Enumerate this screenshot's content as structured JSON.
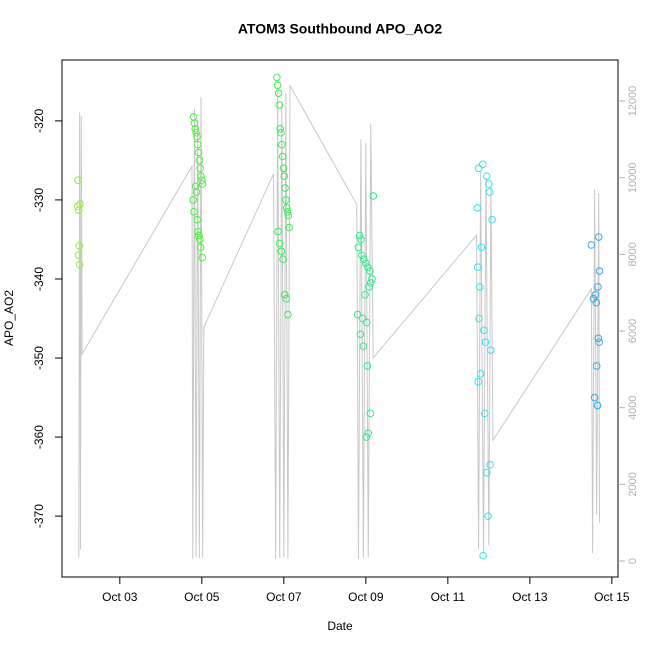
{
  "chart_data": {
    "type": "scatter",
    "title": "ATOM3 Southbound APO_AO2",
    "x_label": "Date",
    "y_label": "APO_AO2",
    "xlim": [
      1.59,
      15.15
    ],
    "ylim": [
      -377.7,
      -312.3
    ],
    "y2lim": [
      -417,
      13070
    ],
    "xticks": [
      {
        "value": 3,
        "label": "Oct 03"
      },
      {
        "value": 5,
        "label": "Oct 05"
      },
      {
        "value": 7,
        "label": "Oct 07"
      },
      {
        "value": 9,
        "label": "Oct 09"
      },
      {
        "value": 11,
        "label": "Oct 11"
      },
      {
        "value": 13,
        "label": "Oct 13"
      },
      {
        "value": 15,
        "label": "Oct 15"
      }
    ],
    "yticks": [
      -370,
      -360,
      -350,
      -340,
      -330,
      -320
    ],
    "y2ticks": [
      0,
      2000,
      4000,
      6000,
      8000,
      10000,
      12000
    ],
    "y2_color": "#b0b0b0",
    "series": [
      {
        "type": "line",
        "axis": "y2",
        "color": "#c8c8c8",
        "x": [
          2.0,
          2.02,
          2.04,
          2.06,
          2.08,
          4.76,
          4.78,
          4.82,
          4.86,
          4.9,
          4.94,
          4.98,
          5.02,
          5.05,
          6.75,
          6.8,
          6.85,
          6.9,
          6.95,
          7.0,
          7.05,
          7.1,
          7.15,
          8.78,
          8.82,
          8.88,
          8.94,
          9.0,
          9.06,
          9.12,
          9.18,
          11.7,
          11.75,
          11.8,
          11.87,
          11.93,
          12.0,
          12.05,
          12.1,
          14.5,
          14.53,
          14.58,
          14.63,
          14.68,
          14.7
        ],
        "values": [
          100,
          11700,
          300,
          11600,
          5400,
          10300,
          50,
          11800,
          100,
          11500,
          80,
          12100,
          100,
          6100,
          10100,
          50,
          12300,
          80,
          11900,
          100,
          12200,
          60,
          12400,
          9300,
          50,
          11000,
          80,
          10900,
          100,
          11400,
          5300,
          8500,
          300,
          10200,
          200,
          10000,
          400,
          9800,
          3150,
          7100,
          200,
          9700,
          1200,
          9600,
          1000
        ]
      },
      {
        "type": "scatter",
        "color": "#8ff040",
        "x": [
          1.98,
          1.97,
          2.0,
          2.03,
          2.01,
          1.99,
          2.02
        ],
        "values": [
          -327.5,
          -330.8,
          -331.3,
          -330.5,
          -335.8,
          -337,
          -338.2
        ]
      },
      {
        "type": "scatter",
        "color": "#4cf040",
        "x": [
          4.8,
          4.82,
          4.84,
          4.86,
          4.88,
          4.9,
          4.92,
          4.94,
          4.96,
          4.98,
          5.0,
          5.02,
          4.85,
          4.87,
          4.79,
          4.81,
          4.89,
          4.91,
          4.93,
          4.95,
          4.97,
          5.01
        ],
        "values": [
          -319.5,
          -320.3,
          -321,
          -321.5,
          -322,
          -323,
          -324,
          -325,
          -326,
          -327,
          -327.5,
          -328,
          -328.3,
          -329,
          -330,
          -331.5,
          -332.5,
          -334,
          -334.5,
          -335,
          -336,
          -337.3
        ]
      },
      {
        "type": "scatter",
        "color": "#3cec5a",
        "x": [
          6.83,
          6.85,
          6.87,
          6.89,
          6.91,
          6.93,
          6.95,
          6.97,
          6.99,
          7.01,
          7.03,
          7.05,
          7.07,
          7.09,
          7.11,
          7.13,
          6.86,
          6.9,
          6.94,
          6.98,
          7.02,
          7.06,
          7.1
        ],
        "values": [
          -314.5,
          -315.5,
          -316.5,
          -318,
          -321,
          -321.5,
          -323,
          -324.5,
          -326,
          -327,
          -328.5,
          -330,
          -331,
          -331.5,
          -332,
          -333.5,
          -334,
          -335.5,
          -336.5,
          -337.5,
          -342,
          -342.5,
          -344.5
        ]
      },
      {
        "type": "scatter",
        "color": "#30ec8c",
        "x": [
          9.18,
          8.85,
          8.88,
          8.82,
          8.9,
          8.95,
          9.0,
          9.05,
          9.1,
          9.15,
          9.12,
          9.08,
          8.98,
          8.8,
          8.92,
          9.02,
          8.87,
          8.94,
          9.04,
          9.11,
          9.06,
          9.01
        ],
        "values": [
          -329.5,
          -334.5,
          -335,
          -336,
          -337,
          -337.5,
          -338,
          -338.5,
          -339,
          -340,
          -340.5,
          -341,
          -342,
          -344.5,
          -345,
          -345.5,
          -347,
          -348.5,
          -351,
          -357,
          -359.5,
          -360
        ]
      },
      {
        "type": "scatter",
        "color": "#30e6f0",
        "x": [
          11.75,
          11.85,
          11.95,
          12.0,
          12.02,
          11.72,
          12.08,
          11.82,
          11.73,
          11.78,
          11.76,
          11.88,
          11.92,
          12.05,
          11.8,
          11.74,
          11.9,
          12.03,
          11.95,
          11.98,
          11.86
        ],
        "values": [
          -326,
          -325.5,
          -327,
          -328,
          -329,
          -331,
          -332.5,
          -336,
          -338.5,
          -341,
          -345,
          -346.5,
          -348,
          -349,
          -352,
          -353,
          -357,
          -363.5,
          -364.5,
          -370,
          -375
        ]
      },
      {
        "type": "scatter",
        "color": "#3aa8e8",
        "x": [
          14.68,
          14.5,
          14.7,
          14.66,
          14.6,
          14.55,
          14.62,
          14.67,
          14.69,
          14.63,
          14.58,
          14.65
        ],
        "values": [
          -334.7,
          -335.7,
          -339,
          -341,
          -342,
          -342.5,
          -343,
          -347.5,
          -348,
          -351,
          -355,
          -356
        ]
      }
    ]
  }
}
